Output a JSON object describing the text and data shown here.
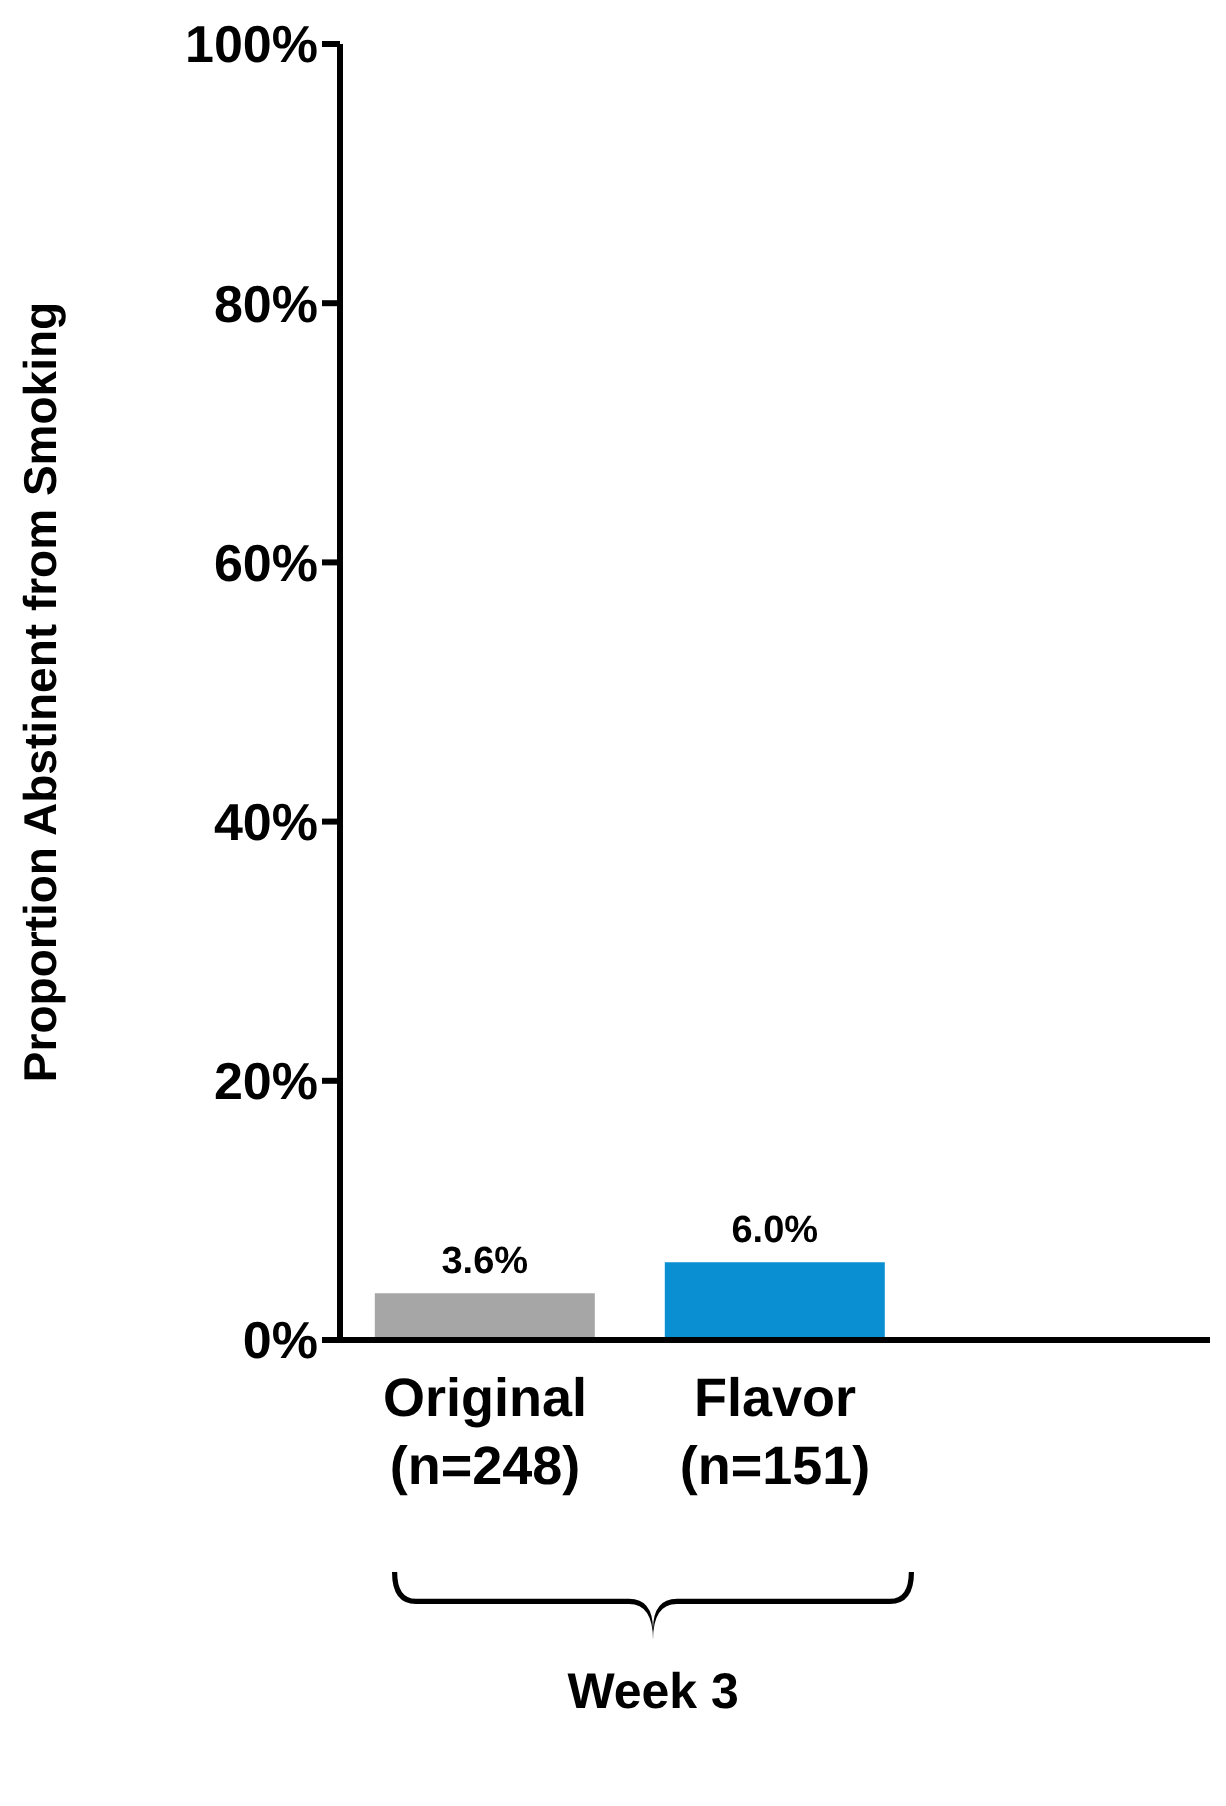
{
  "chart_data": {
    "type": "bar",
    "ylabel": "Proportion Abstinent from Smoking",
    "categories": [
      "Original\n(n=248)",
      "Flavor\n(n=151)",
      null
    ],
    "values": [
      3.6,
      6.0,
      null
    ],
    "colors": [
      "#a6a6a6",
      "#0a8fd3",
      null
    ],
    "value_labels": [
      "3.6%",
      "6.0%",
      null
    ],
    "ylim": [
      0,
      100
    ],
    "yticks": [
      {
        "value": 0,
        "label": "0%"
      },
      {
        "value": 20,
        "label": "20%"
      },
      {
        "value": 40,
        "label": "40%"
      },
      {
        "value": 60,
        "label": "60%"
      },
      {
        "value": 80,
        "label": "80%"
      },
      {
        "value": 100,
        "label": "100%"
      }
    ],
    "grid": false,
    "annotations": [
      "Week 3"
    ]
  }
}
